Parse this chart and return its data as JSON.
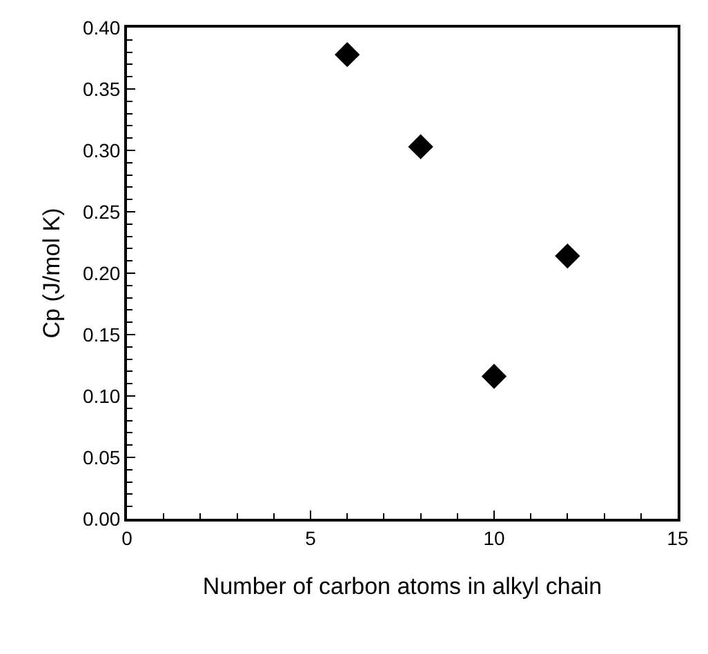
{
  "chart_data": {
    "type": "scatter",
    "xlabel": "Number of carbon atoms in alkyl chain",
    "ylabel": "Cp (J/mol K)",
    "x": [
      6,
      8,
      10,
      12
    ],
    "series": [
      {
        "color": "#000000",
        "values": [
          0.378,
          0.303,
          0.116,
          0.214
        ]
      }
    ],
    "marker": "diamond",
    "grid": false,
    "xlim": [
      0,
      15
    ],
    "xticks": [
      0,
      5,
      10,
      15
    ],
    "ylim": [
      0,
      0.4
    ],
    "yticks": [
      {
        "value": 0,
        "label": "0.00"
      },
      {
        "value": 0.05,
        "label": "0.05"
      },
      {
        "value": 0.1,
        "label": "0.10"
      },
      {
        "value": 0.15,
        "label": "0.15"
      },
      {
        "value": 0.2,
        "label": "0.20"
      },
      {
        "value": 0.25,
        "label": "0.25"
      },
      {
        "value": 0.3,
        "label": "0.30"
      },
      {
        "value": 0.35,
        "label": "0.35"
      },
      {
        "value": 0.4,
        "label": "0.40"
      }
    ]
  }
}
